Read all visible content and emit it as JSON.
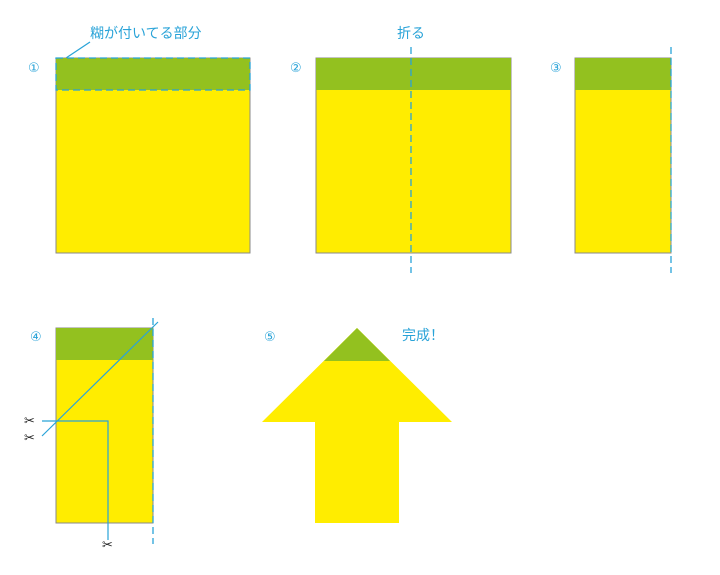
{
  "colors": {
    "sticky_yellow": "#ffed00",
    "glue_green": "#93c11f",
    "guide_blue": "#29a3d8",
    "outline_gray": "#8a8a8a"
  },
  "labels": {
    "glue_part": "糊が付いてる部分",
    "fold": "折る",
    "done": "完成！"
  },
  "steps": [
    "①",
    "②",
    "③",
    "④",
    "⑤"
  ],
  "icons": {
    "scissors_glyph": "✂",
    "scissors_name": "scissors-icon"
  }
}
